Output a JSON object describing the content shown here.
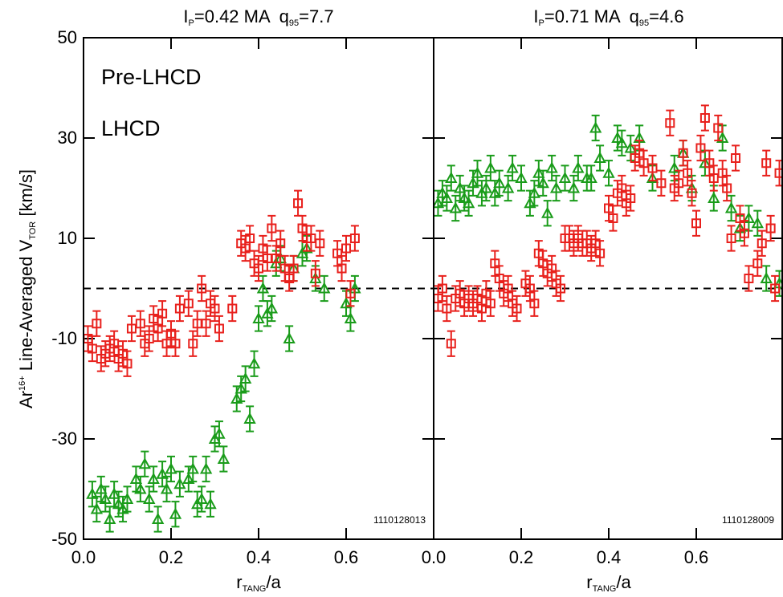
{
  "chart_data": [
    {
      "type": "scatter",
      "title": [
        "I",
        "P",
        "=0.42 MA  q",
        "95",
        "=7.7"
      ],
      "x_label": [
        "r",
        "TANG",
        "/a"
      ],
      "y_label": [
        "Ar",
        "16+",
        " Line-Averaged V",
        "TOR",
        " [km/s]"
      ],
      "xlim": [
        0,
        0.8
      ],
      "xticks": [
        {
          "value": 0,
          "label": "0.0"
        },
        0.2,
        0.4,
        0.6
      ],
      "ylim": [
        -50,
        50
      ],
      "yticks": [
        50,
        30,
        10,
        -10,
        -30,
        -50
      ],
      "reference_line": 0,
      "annotation": "1110128013",
      "legend": "top-left",
      "series": [
        {
          "name": "Pre-LHCD",
          "color": "#1a9c1a",
          "marker": "triangle",
          "error": 2.5,
          "x": [
            0.02,
            0.03,
            0.04,
            0.05,
            0.06,
            0.07,
            0.08,
            0.09,
            0.1,
            0.12,
            0.13,
            0.14,
            0.15,
            0.16,
            0.17,
            0.18,
            0.19,
            0.2,
            0.21,
            0.22,
            0.24,
            0.25,
            0.26,
            0.27,
            0.28,
            0.29,
            0.3,
            0.31,
            0.32,
            0.35,
            0.36,
            0.37,
            0.38,
            0.39,
            0.4,
            0.41,
            0.42,
            0.43,
            0.44,
            0.45,
            0.47,
            0.48,
            0.5,
            0.51,
            0.53,
            0.55,
            0.6,
            0.61,
            0.62
          ],
          "values": [
            -41,
            -44,
            -40,
            -42,
            -46,
            -41,
            -43,
            -44,
            -42,
            -38,
            -40,
            -35,
            -42,
            -38,
            -46,
            -37,
            -40,
            -36,
            -45,
            -39,
            -38,
            -36,
            -43,
            -42,
            -36,
            -43,
            -30,
            -29,
            -34,
            -22,
            -20,
            -18,
            -26,
            -15,
            -6,
            0,
            -5,
            -4,
            5,
            6,
            -10,
            4,
            7,
            8,
            2,
            0,
            -3,
            -6,
            0
          ]
        },
        {
          "name": "LHCD",
          "color": "#e8201c",
          "marker": "square",
          "error": 2.5,
          "x": [
            0.01,
            0.02,
            0.03,
            0.04,
            0.05,
            0.06,
            0.07,
            0.08,
            0.09,
            0.1,
            0.11,
            0.13,
            0.14,
            0.15,
            0.16,
            0.17,
            0.18,
            0.19,
            0.2,
            0.21,
            0.22,
            0.24,
            0.25,
            0.26,
            0.27,
            0.28,
            0.29,
            0.3,
            0.31,
            0.34,
            0.36,
            0.37,
            0.38,
            0.39,
            0.4,
            0.41,
            0.42,
            0.43,
            0.44,
            0.45,
            0.46,
            0.47,
            0.48,
            0.49,
            0.5,
            0.51,
            0.52,
            0.53,
            0.54,
            0.58,
            0.59,
            0.6,
            0.61,
            0.62
          ],
          "values": [
            -10,
            -12,
            -7,
            -14,
            -13,
            -12,
            -11,
            -14,
            -13,
            -15,
            -8,
            -7,
            -11,
            -10,
            -6,
            -8,
            -5,
            -11,
            -9,
            -11,
            -4,
            -3,
            -11,
            -7,
            0,
            -7,
            -3,
            -4,
            -8,
            -4,
            9,
            8,
            10,
            5,
            4,
            8,
            6,
            12,
            6,
            9,
            4,
            2,
            4,
            17,
            12,
            10,
            10,
            3,
            9,
            7,
            4,
            8,
            -1,
            10
          ]
        }
      ]
    },
    {
      "type": "scatter",
      "title": [
        "I",
        "P",
        "=0.71 MA  q",
        "95",
        "=4.6"
      ],
      "x_label": [
        "r",
        "TANG",
        "/a"
      ],
      "xlim": [
        0,
        0.8
      ],
      "xticks": [
        {
          "value": 0,
          "label": "0.0"
        },
        0.2,
        0.4,
        0.6
      ],
      "ylim": [
        -50,
        50
      ],
      "yticks": [
        50,
        30,
        10,
        -10,
        -30,
        -50
      ],
      "reference_line": 0,
      "annotation": "1110128009",
      "series": [
        {
          "color": "#1a9c1a",
          "marker": "triangle",
          "error": 2.5,
          "x": [
            0.01,
            0.02,
            0.03,
            0.04,
            0.05,
            0.06,
            0.07,
            0.08,
            0.09,
            0.1,
            0.11,
            0.12,
            0.13,
            0.14,
            0.15,
            0.17,
            0.18,
            0.2,
            0.22,
            0.23,
            0.24,
            0.25,
            0.26,
            0.27,
            0.28,
            0.3,
            0.32,
            0.33,
            0.35,
            0.36,
            0.37,
            0.38,
            0.4,
            0.42,
            0.43,
            0.45,
            0.47,
            0.5,
            0.55,
            0.57,
            0.59,
            0.62,
            0.64,
            0.66,
            0.68,
            0.7,
            0.72,
            0.74,
            0.76,
            0.79
          ],
          "values": [
            17,
            19,
            18,
            22,
            16,
            20,
            18,
            17,
            21,
            23,
            19,
            20,
            24,
            19,
            21,
            20,
            24,
            22,
            17,
            19,
            23,
            21,
            15,
            24,
            20,
            22,
            20,
            24,
            22,
            22,
            32,
            26,
            23,
            30,
            29,
            28,
            30,
            22,
            24,
            27,
            20,
            25,
            18,
            30,
            16,
            12,
            14,
            13,
            2,
            1
          ]
        },
        {
          "color": "#e8201c",
          "marker": "square",
          "error": 2.5,
          "x": [
            0.01,
            0.02,
            0.03,
            0.04,
            0.05,
            0.06,
            0.07,
            0.08,
            0.09,
            0.1,
            0.11,
            0.12,
            0.13,
            0.14,
            0.15,
            0.16,
            0.17,
            0.18,
            0.19,
            0.21,
            0.22,
            0.23,
            0.24,
            0.25,
            0.26,
            0.27,
            0.28,
            0.29,
            0.3,
            0.31,
            0.32,
            0.33,
            0.34,
            0.35,
            0.36,
            0.37,
            0.38,
            0.4,
            0.41,
            0.42,
            0.43,
            0.44,
            0.45,
            0.46,
            0.47,
            0.48,
            0.5,
            0.52,
            0.54,
            0.55,
            0.56,
            0.57,
            0.58,
            0.59,
            0.6,
            0.61,
            0.62,
            0.63,
            0.64,
            0.65,
            0.66,
            0.67,
            0.68,
            0.69,
            0.7,
            0.71,
            0.72,
            0.74,
            0.75,
            0.76,
            0.77,
            0.78,
            0.79
          ],
          "values": [
            -2,
            0,
            -4,
            -11,
            -2,
            -1,
            -3,
            -2,
            -3,
            -2,
            -4,
            -1,
            -3,
            5,
            2,
            -1,
            0,
            -3,
            -4,
            1,
            0,
            -3,
            7,
            5,
            3,
            4,
            1,
            0,
            10,
            10,
            9,
            10,
            9,
            9,
            8,
            9,
            7,
            16,
            14,
            19,
            20,
            17,
            18,
            26,
            27,
            25,
            24,
            21,
            33,
            20,
            21,
            27,
            23,
            19,
            13,
            28,
            34,
            25,
            22,
            32,
            23,
            20,
            10,
            26,
            14,
            11,
            2,
            5,
            9,
            25,
            12,
            0,
            23
          ]
        }
      ]
    }
  ]
}
